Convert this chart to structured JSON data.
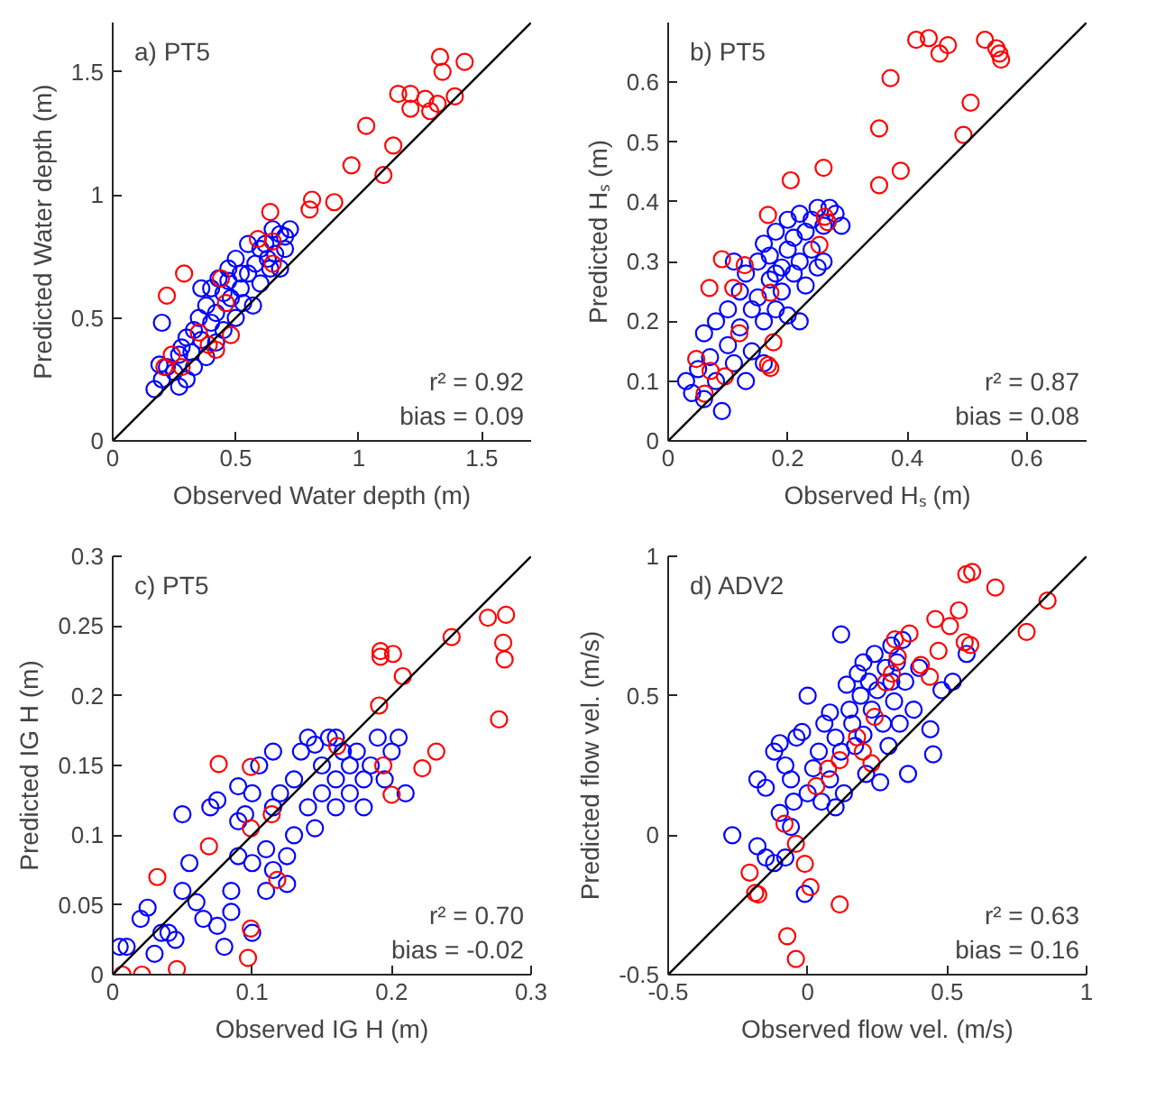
{
  "chart_data": [
    {
      "type": "scatter",
      "xlabel": "Observed Water depth (m)",
      "ylabel": "Predicted Water depth (m)",
      "xlim": [
        0,
        1.7
      ],
      "ylim": [
        0,
        1.7
      ],
      "xticks": [
        0,
        0.5,
        1,
        1.5
      ],
      "yticks": [
        0,
        0.5,
        1,
        1.5
      ],
      "marker": "circle",
      "annotations": [
        "a) PT5",
        "r² = 0.92",
        "bias = 0.09"
      ],
      "series": [
        {
          "color": "#0000ff",
          "x": [
            0.17,
            0.2,
            0.22,
            0.19,
            0.25,
            0.27,
            0.3,
            0.27,
            0.28,
            0.2,
            0.32,
            0.3,
            0.33,
            0.35,
            0.38,
            0.36,
            0.4,
            0.42,
            0.45,
            0.4,
            0.43,
            0.47,
            0.5,
            0.48,
            0.52,
            0.55,
            0.5,
            0.58,
            0.6,
            0.62,
            0.65,
            0.68,
            0.7,
            0.72,
            0.66,
            0.64,
            0.7,
            0.6,
            0.57,
            0.53,
            0.45,
            0.42,
            0.38,
            0.33,
            0.36,
            0.55,
            0.63,
            0.68,
            0.47,
            0.52
          ],
          "values": [
            0.21,
            0.25,
            0.3,
            0.31,
            0.28,
            0.22,
            0.25,
            0.35,
            0.38,
            0.48,
            0.36,
            0.42,
            0.45,
            0.5,
            0.55,
            0.41,
            0.48,
            0.52,
            0.6,
            0.62,
            0.66,
            0.7,
            0.74,
            0.58,
            0.62,
            0.68,
            0.5,
            0.72,
            0.78,
            0.8,
            0.86,
            0.84,
            0.83,
            0.86,
            0.76,
            0.7,
            0.78,
            0.64,
            0.55,
            0.56,
            0.45,
            0.4,
            0.34,
            0.3,
            0.62,
            0.8,
            0.74,
            0.7,
            0.65,
            0.68
          ]
        },
        {
          "color": "#ff0000",
          "x": [
            1.33,
            1.43,
            1.34,
            1.16,
            1.21,
            1.27,
            1.32,
            1.39,
            1.21,
            1.29,
            1.03,
            1.14,
            0.97,
            1.1,
            0.81,
            0.9,
            0.8,
            0.64,
            0.29,
            0.22,
            0.44,
            0.59,
            0.65,
            0.65,
            0.46,
            0.48,
            0.42,
            0.35,
            0.24,
            0.21,
            0.28,
            0.39
          ],
          "values": [
            1.56,
            1.54,
            1.5,
            1.41,
            1.41,
            1.39,
            1.37,
            1.4,
            1.35,
            1.34,
            1.28,
            1.2,
            1.12,
            1.08,
            0.98,
            0.97,
            0.94,
            0.93,
            0.68,
            0.59,
            0.66,
            0.82,
            0.81,
            0.72,
            0.56,
            0.43,
            0.37,
            0.44,
            0.35,
            0.3,
            0.3,
            0.39
          ]
        },
        {
          "type": "line",
          "marker": "none",
          "color": "#000000",
          "x": [
            0,
            1.7
          ],
          "values": [
            0,
            1.7
          ]
        }
      ]
    },
    {
      "type": "scatter",
      "xlabel": "Observed Hₛ (m)",
      "ylabel": "Predicted Hₛ (m)",
      "xlim": [
        0,
        0.7
      ],
      "ylim": [
        0,
        0.7
      ],
      "xticks": [
        0,
        0.2,
        0.4,
        0.6
      ],
      "yticks": [
        0,
        0.1,
        0.2,
        0.3,
        0.4,
        0.5,
        0.6
      ],
      "marker": "circle",
      "annotations": [
        "b) PT5",
        "r² = 0.87",
        "bias = 0.08"
      ],
      "series": [
        {
          "color": "#0000ff",
          "x": [
            0.03,
            0.04,
            0.05,
            0.06,
            0.07,
            0.08,
            0.09,
            0.06,
            0.08,
            0.1,
            0.1,
            0.11,
            0.12,
            0.12,
            0.13,
            0.14,
            0.14,
            0.15,
            0.15,
            0.16,
            0.16,
            0.17,
            0.17,
            0.18,
            0.18,
            0.19,
            0.19,
            0.2,
            0.2,
            0.21,
            0.21,
            0.22,
            0.22,
            0.23,
            0.23,
            0.24,
            0.24,
            0.25,
            0.25,
            0.26,
            0.27,
            0.28,
            0.29,
            0.26,
            0.22,
            0.2,
            0.13,
            0.16,
            0.18,
            0.11
          ],
          "values": [
            0.1,
            0.08,
            0.12,
            0.07,
            0.14,
            0.1,
            0.05,
            0.18,
            0.2,
            0.16,
            0.22,
            0.13,
            0.25,
            0.19,
            0.28,
            0.22,
            0.15,
            0.3,
            0.24,
            0.2,
            0.33,
            0.27,
            0.31,
            0.22,
            0.35,
            0.29,
            0.25,
            0.32,
            0.37,
            0.28,
            0.34,
            0.3,
            0.38,
            0.35,
            0.26,
            0.32,
            0.37,
            0.39,
            0.29,
            0.36,
            0.39,
            0.38,
            0.36,
            0.3,
            0.2,
            0.21,
            0.1,
            0.13,
            0.28,
            0.3
          ]
        },
        {
          "color": "#ff0000",
          "x": [
            0.415,
            0.436,
            0.454,
            0.468,
            0.53,
            0.549,
            0.554,
            0.557,
            0.372,
            0.506,
            0.353,
            0.494,
            0.26,
            0.389,
            0.353,
            0.205,
            0.167,
            0.262,
            0.267,
            0.253,
            0.09,
            0.128,
            0.069,
            0.109,
            0.171,
            0.119,
            0.176,
            0.167,
            0.171,
            0.047,
            0.071,
            0.061,
            0.095
          ],
          "values": [
            0.671,
            0.674,
            0.648,
            0.662,
            0.671,
            0.657,
            0.648,
            0.638,
            0.607,
            0.566,
            0.523,
            0.512,
            0.457,
            0.452,
            0.428,
            0.436,
            0.378,
            0.375,
            0.366,
            0.328,
            0.304,
            0.294,
            0.256,
            0.256,
            0.248,
            0.18,
            0.165,
            0.127,
            0.122,
            0.137,
            0.117,
            0.079,
            0.108
          ]
        },
        {
          "type": "line",
          "marker": "none",
          "color": "#000000",
          "x": [
            0,
            0.7
          ],
          "values": [
            0,
            0.7
          ]
        }
      ]
    },
    {
      "type": "scatter",
      "xlabel": "Observed IG H (m)",
      "ylabel": "Predicted IG H (m)",
      "xlim": [
        0,
        0.3
      ],
      "ylim": [
        0,
        0.3
      ],
      "xticks": [
        0,
        0.1,
        0.2,
        0.3
      ],
      "yticks": [
        0,
        0.05,
        0.1,
        0.15,
        0.2,
        0.25,
        0.3
      ],
      "marker": "circle",
      "annotations": [
        "c) PT5",
        "r² = 0.70",
        "bias = -0.02"
      ],
      "series": [
        {
          "color": "#0000ff",
          "x": [
            0.005,
            0.01,
            0.02,
            0.025,
            0.03,
            0.035,
            0.04,
            0.045,
            0.05,
            0.05,
            0.055,
            0.06,
            0.065,
            0.07,
            0.075,
            0.075,
            0.08,
            0.085,
            0.09,
            0.09,
            0.095,
            0.1,
            0.1,
            0.105,
            0.11,
            0.11,
            0.115,
            0.115,
            0.12,
            0.125,
            0.13,
            0.13,
            0.135,
            0.14,
            0.14,
            0.145,
            0.15,
            0.15,
            0.155,
            0.16,
            0.16,
            0.165,
            0.17,
            0.17,
            0.175,
            0.18,
            0.18,
            0.185,
            0.19,
            0.195,
            0.2,
            0.205,
            0.21,
            0.1,
            0.115,
            0.125,
            0.085,
            0.09,
            0.16,
            0.145
          ],
          "values": [
            0.02,
            0.02,
            0.04,
            0.048,
            0.015,
            0.03,
            0.03,
            0.025,
            0.115,
            0.06,
            0.08,
            0.052,
            0.04,
            0.12,
            0.125,
            0.035,
            0.02,
            0.06,
            0.085,
            0.135,
            0.115,
            0.08,
            0.13,
            0.15,
            0.06,
            0.09,
            0.12,
            0.16,
            0.13,
            0.085,
            0.14,
            0.1,
            0.16,
            0.17,
            0.12,
            0.105,
            0.15,
            0.13,
            0.17,
            0.14,
            0.12,
            0.16,
            0.15,
            0.13,
            0.16,
            0.14,
            0.12,
            0.15,
            0.17,
            0.14,
            0.16,
            0.17,
            0.13,
            0.03,
            0.075,
            0.065,
            0.045,
            0.11,
            0.17,
            0.165
          ]
        },
        {
          "color": "#ff0000",
          "x": [
            0.269,
            0.282,
            0.243,
            0.192,
            0.192,
            0.201,
            0.208,
            0.28,
            0.281,
            0.277,
            0.191,
            0.232,
            0.222,
            0.194,
            0.2,
            0.161,
            0.076,
            0.099,
            0.069,
            0.099,
            0.114,
            0.032,
            0.118,
            0.099,
            0.097,
            0.007,
            0.021,
            0.046
          ],
          "values": [
            0.256,
            0.258,
            0.242,
            0.232,
            0.228,
            0.23,
            0.214,
            0.238,
            0.226,
            0.183,
            0.193,
            0.16,
            0.148,
            0.15,
            0.129,
            0.164,
            0.151,
            0.149,
            0.092,
            0.105,
            0.115,
            0.07,
            0.068,
            0.033,
            0.012,
            0.0,
            0.0,
            0.004
          ]
        },
        {
          "type": "line",
          "marker": "none",
          "color": "#000000",
          "x": [
            0,
            0.3
          ],
          "values": [
            0,
            0.3
          ]
        }
      ]
    },
    {
      "type": "scatter",
      "xlabel": "Observed flow vel. (m/s)",
      "ylabel": "Predicted flow vel. (m/s)",
      "xlim": [
        -0.5,
        1
      ],
      "ylim": [
        -0.5,
        1
      ],
      "xticks": [
        -0.5,
        0,
        0.5,
        1
      ],
      "yticks": [
        -0.5,
        0,
        0.5,
        1
      ],
      "marker": "circle",
      "annotations": [
        "d) ADV2",
        "r² = 0.63",
        "bias = 0.16"
      ],
      "series": [
        {
          "color": "#0000ff",
          "x": [
            -0.27,
            -0.18,
            -0.15,
            -0.12,
            -0.1,
            -0.08,
            -0.06,
            -0.05,
            -0.18,
            -0.15,
            -0.12,
            -0.1,
            -0.08,
            -0.06,
            -0.04,
            -0.02,
            0.0,
            0.0,
            0.02,
            0.04,
            0.05,
            0.06,
            0.08,
            0.08,
            0.1,
            0.1,
            0.12,
            0.12,
            0.13,
            0.14,
            0.15,
            0.16,
            0.17,
            0.18,
            0.19,
            0.2,
            0.2,
            0.21,
            0.22,
            0.23,
            0.24,
            0.25,
            0.26,
            0.27,
            0.28,
            0.29,
            0.3,
            0.3,
            0.31,
            0.32,
            0.33,
            0.34,
            0.35,
            0.36,
            0.38,
            0.4,
            0.44,
            0.45,
            0.48,
            0.52,
            0.57,
            -0.01
          ],
          "values": [
            0.0,
            -0.04,
            -0.08,
            -0.1,
            0.08,
            -0.08,
            0.03,
            0.12,
            0.2,
            0.17,
            0.3,
            0.33,
            0.25,
            0.2,
            0.35,
            0.37,
            0.5,
            0.15,
            0.24,
            0.3,
            0.12,
            0.4,
            0.44,
            0.2,
            0.1,
            0.35,
            0.72,
            0.3,
            0.15,
            0.54,
            0.45,
            0.4,
            0.32,
            0.58,
            0.5,
            0.62,
            0.36,
            0.22,
            0.55,
            0.45,
            0.65,
            0.52,
            0.19,
            0.4,
            0.6,
            0.32,
            0.55,
            0.68,
            0.48,
            0.62,
            0.4,
            0.7,
            0.55,
            0.22,
            0.45,
            0.6,
            0.38,
            0.29,
            0.52,
            0.55,
            0.65,
            -0.21
          ]
        },
        {
          "color": "#ff0000",
          "x": [
            0.569,
            0.59,
            0.673,
            0.86,
            0.785,
            0.542,
            0.458,
            0.51,
            0.563,
            0.583,
            0.469,
            0.406,
            0.438,
            0.365,
            0.313,
            0.323,
            0.302,
            0.281,
            0.24,
            0.177,
            0.198,
            0.229,
            0.115,
            0.073,
            0.031,
            -0.083,
            -0.042,
            -0.01,
            -0.208,
            -0.188,
            -0.177,
            0.01,
            0.115,
            -0.073,
            -0.042
          ],
          "values": [
            0.936,
            0.944,
            0.888,
            0.841,
            0.729,
            0.806,
            0.775,
            0.75,
            0.692,
            0.682,
            0.661,
            0.61,
            0.568,
            0.723,
            0.702,
            0.64,
            0.579,
            0.548,
            0.424,
            0.351,
            0.3,
            0.258,
            0.269,
            0.238,
            0.176,
            0.041,
            -0.031,
            -0.103,
            -0.134,
            -0.207,
            -0.213,
            -0.186,
            -0.248,
            -0.362,
            -0.444
          ]
        },
        {
          "type": "line",
          "marker": "none",
          "color": "#000000",
          "x": [
            -0.5,
            1
          ],
          "values": [
            -0.5,
            1
          ]
        }
      ]
    }
  ]
}
